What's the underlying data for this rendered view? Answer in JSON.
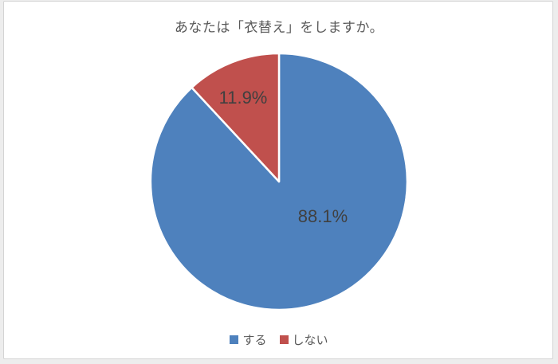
{
  "chart_data": {
    "type": "pie",
    "title": "あなたは「衣替え」をしますか。",
    "start_angle_deg": 0,
    "direction": "clockwise",
    "legend_position": "bottom",
    "label_color": "#404040",
    "title_color": "#595959",
    "slices": [
      {
        "label": "する",
        "value": 88.1,
        "display": "88.1%",
        "color": "#4E81BD"
      },
      {
        "label": "しない",
        "value": 11.9,
        "display": "11.9%",
        "color": "#C0504D"
      }
    ]
  }
}
